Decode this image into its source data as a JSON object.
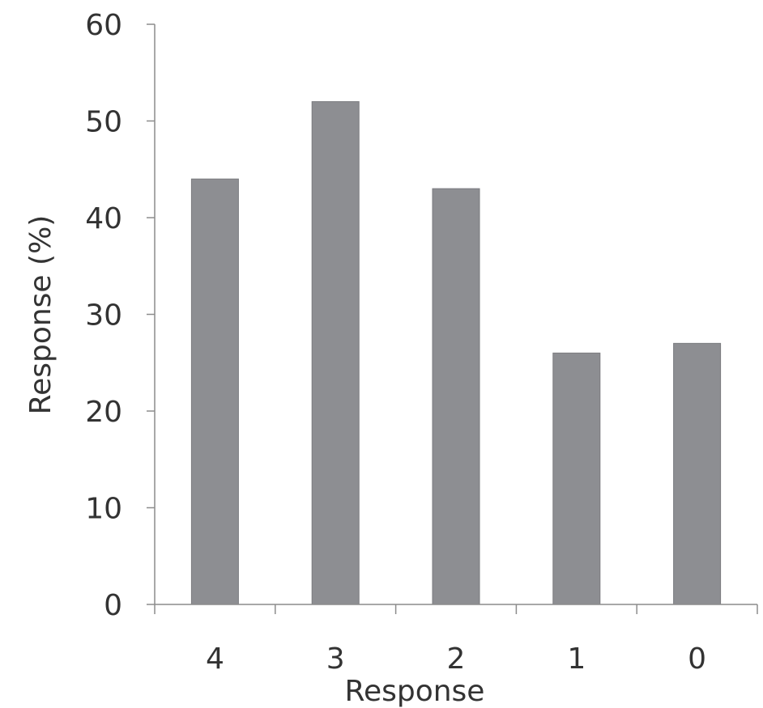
{
  "chart_data": {
    "type": "bar",
    "categories": [
      "4",
      "3",
      "2",
      "1",
      "0"
    ],
    "values": [
      44,
      52,
      43,
      26,
      27
    ],
    "title": "",
    "xlabel": "Response",
    "ylabel": "Response (%)",
    "ylim": [
      0,
      60
    ],
    "yticks": [
      "0",
      "10",
      "20",
      "30",
      "40",
      "50",
      "60"
    ],
    "grid": false,
    "legend": false,
    "bar_color": "#8d8e92"
  }
}
